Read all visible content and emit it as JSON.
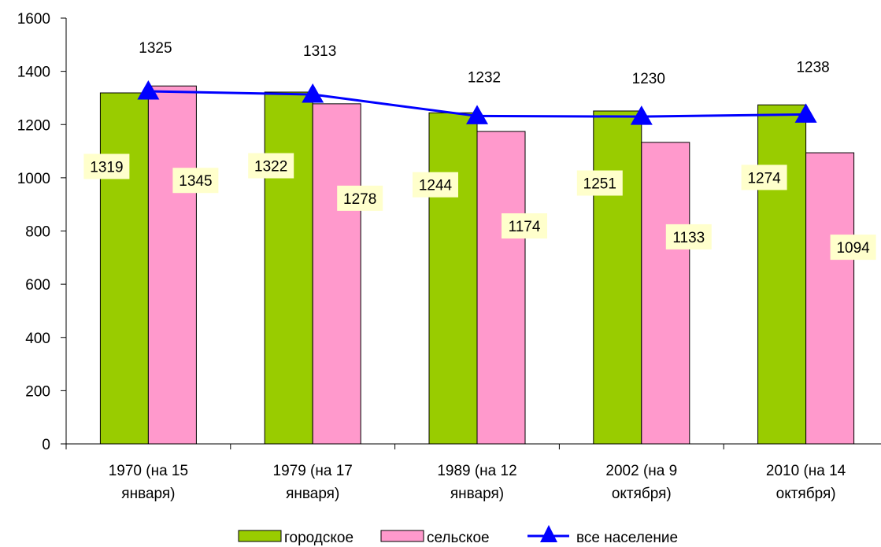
{
  "chart_data": {
    "type": "bar",
    "categories": [
      [
        "1970 (на 15",
        "января)"
      ],
      [
        "1979 (на 17",
        "января)"
      ],
      [
        "1989 (на 12",
        "января)"
      ],
      [
        "2002 (на 9",
        "октября)"
      ],
      [
        "2010 (на 14",
        "октября)"
      ]
    ],
    "series": [
      {
        "name": "городское",
        "kind": "bar",
        "color": "#99CC00",
        "values": [
          1319,
          1322,
          1244,
          1251,
          1274
        ],
        "labels": [
          "1319",
          "1322",
          "1244",
          "1251",
          "1274"
        ]
      },
      {
        "name": "сельское",
        "kind": "bar",
        "color": "#FF99CC",
        "values": [
          1345,
          1278,
          1174,
          1133,
          1094
        ],
        "labels": [
          "1345",
          "1278",
          "1174",
          "1133",
          "1094"
        ]
      },
      {
        "name": "все население",
        "kind": "line",
        "marker": "triangle",
        "color": "#0000FF",
        "values": [
          1325,
          1313,
          1232,
          1230,
          1238
        ],
        "labels": [
          "1325",
          "1313",
          "1232",
          "1230",
          "1238"
        ]
      }
    ],
    "ylim": [
      0,
      1600
    ],
    "yticks": [
      "0",
      "200",
      "400",
      "600",
      "800",
      "1000",
      "1200",
      "1400",
      "1600"
    ],
    "grid": false,
    "data_label_background": "#FFFFCC",
    "legend_position": "bottom"
  }
}
